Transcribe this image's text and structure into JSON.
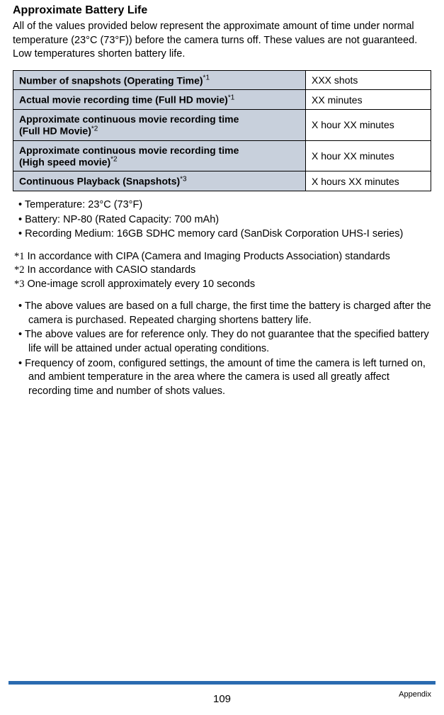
{
  "title": "Approximate Battery Life",
  "intro": "All of the values provided below represent the approximate amount of time under normal temperature (23°C (73°F)) before the camera turns off. These values are not guaranteed. Low temperatures shorten battery life.",
  "table": {
    "rows": [
      {
        "label": "Number of snapshots (Operating Time)",
        "note": "*1",
        "value": "XXX shots"
      },
      {
        "label": "Actual movie recording time (Full HD movie)",
        "note": "*1",
        "value": "XX minutes"
      },
      {
        "label_l1": "Approximate continuous movie recording time",
        "label_l2": "(Full HD Movie)",
        "note": "*2",
        "value": "X hour XX minutes"
      },
      {
        "label_l1": "Approximate continuous movie recording time",
        "label_l2": "(High speed movie)",
        "note": "*2",
        "value": "X hour XX minutes"
      },
      {
        "label": "Continuous Playback (Snapshots)",
        "note": "*3",
        "value": "X hours XX minutes"
      }
    ]
  },
  "conditions": [
    "Temperature: 23°C (73°F)",
    "Battery: NP-80 (Rated Capacity: 700 mAh)",
    "Recording Medium: 16GB SDHC memory card (SanDisk Corporation UHS-I series)"
  ],
  "footnotes": [
    {
      "mark": "*1",
      "text": "In accordance with CIPA (Camera and Imaging Products Association) standards"
    },
    {
      "mark": "*2",
      "text": "In accordance with CASIO standards"
    },
    {
      "mark": "*3",
      "text": "One-image scroll approximately every 10 seconds"
    }
  ],
  "notes": [
    "The above values are based on a full charge, the first time the battery is charged after the camera is purchased. Repeated charging shortens battery life.",
    "The above values are for reference only. They do not guarantee that the specified battery life will be attained under actual operating conditions.",
    "Frequency of zoom, configured settings, the amount of time the camera is left turned on, and ambient temperature in the area where the camera is used all greatly affect recording time and number of shots values."
  ],
  "footer": {
    "page": "109",
    "section": "Appendix"
  }
}
